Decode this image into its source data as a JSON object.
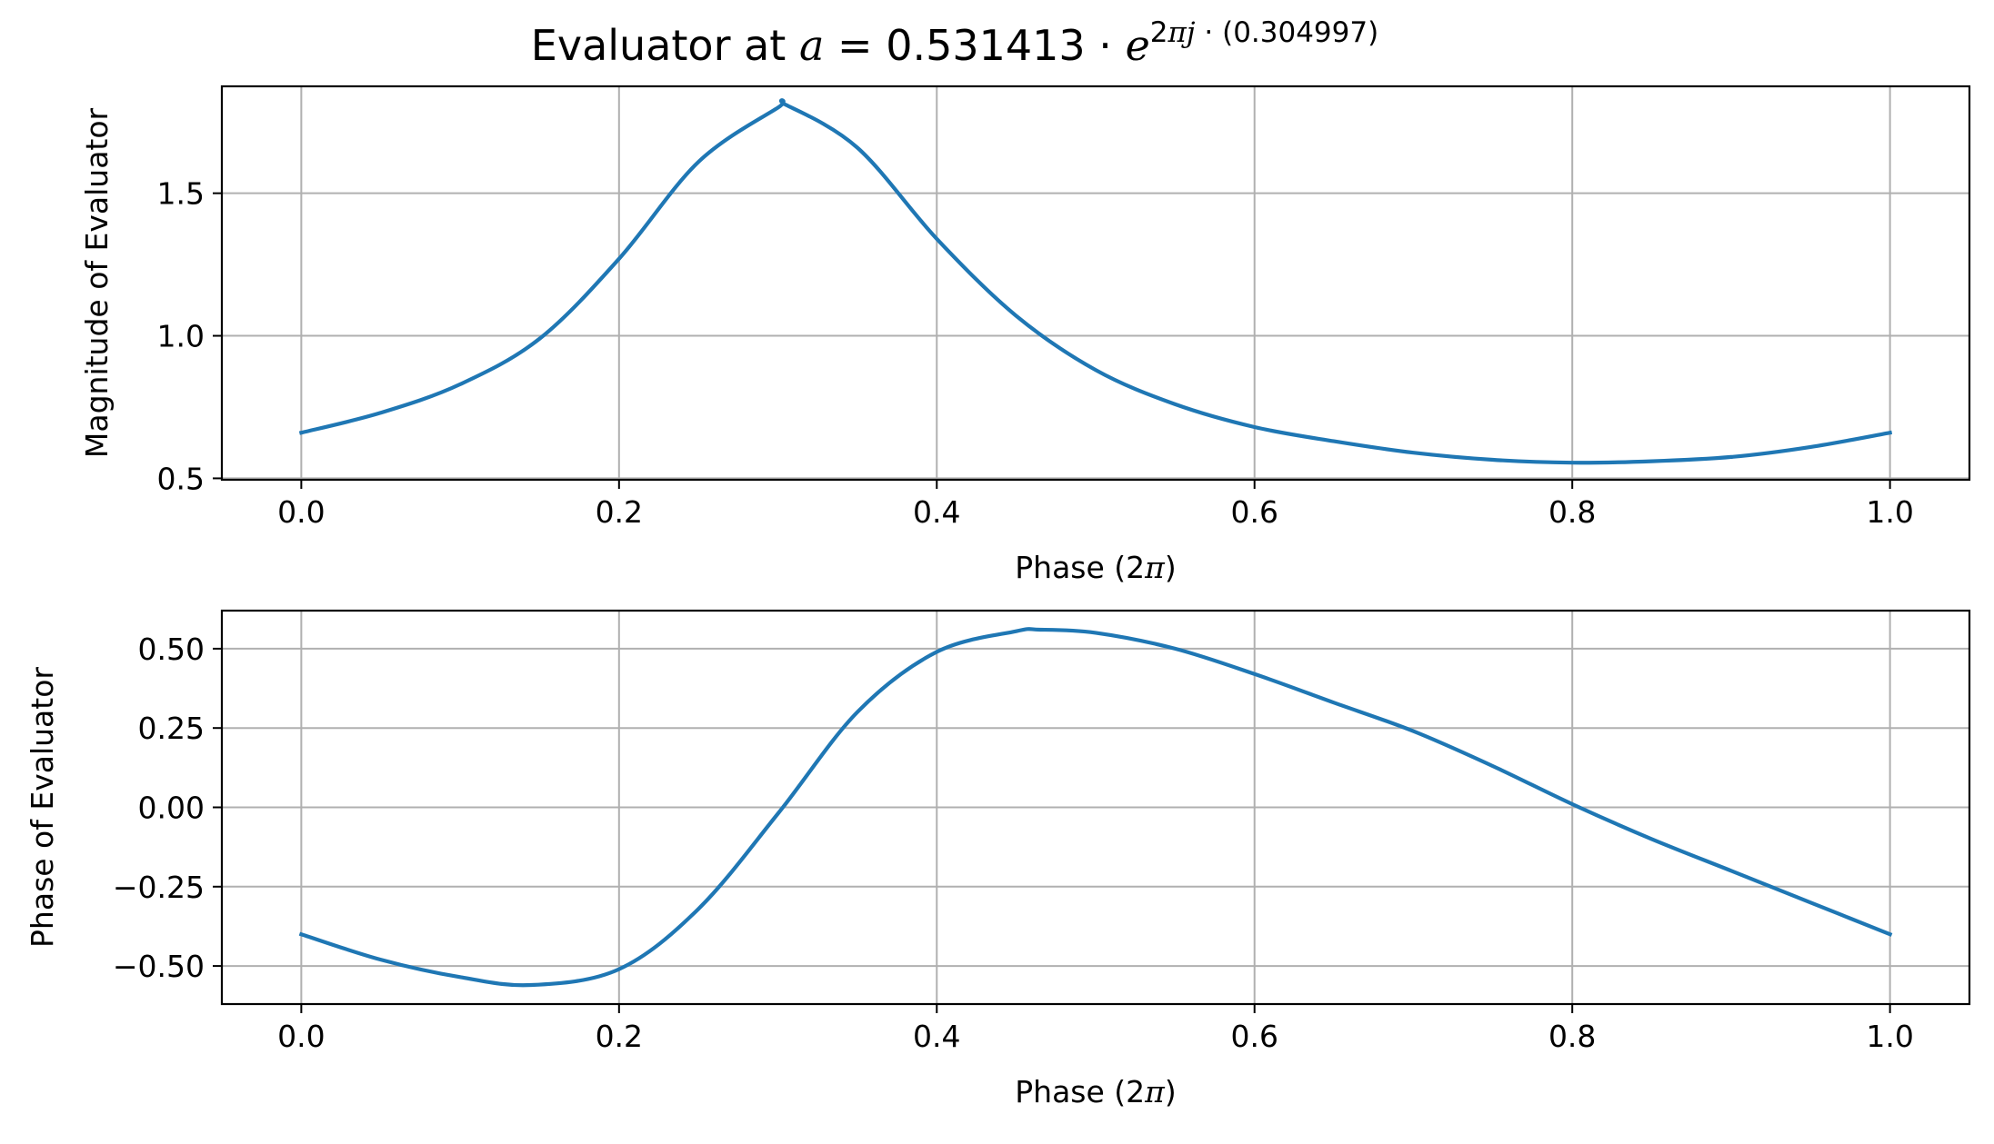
{
  "title": {
    "prefix": "Evaluator at ",
    "var": "a",
    "equals": " = 0.531413 · ",
    "base": "e",
    "exp_num": "2",
    "exp_pi": "π",
    "exp_j": "j",
    "exp_rest": " · (0.304997)"
  },
  "colors": {
    "line": "#1f77b4",
    "grid": "#b0b0b0",
    "axes": "#000000"
  },
  "chart_data": [
    {
      "type": "line",
      "xlabel_text": "Phase (2",
      "xlabel_pi": "π",
      "xlabel_close": ")",
      "ylabel": "Magnitude of Evaluator",
      "xlim": [
        -0.05,
        1.05
      ],
      "ylim": [
        0.495,
        1.875
      ],
      "xticks": [
        0.0,
        0.2,
        0.4,
        0.6,
        0.8,
        1.0
      ],
      "xtick_labels": [
        "0.0",
        "0.2",
        "0.4",
        "0.6",
        "0.8",
        "1.0"
      ],
      "yticks": [
        0.5,
        1.0,
        1.5
      ],
      "ytick_labels": [
        "0.5",
        "1.0",
        "1.5"
      ],
      "grid": true,
      "series": [
        {
          "x": [
            0.0,
            0.05,
            0.1,
            0.15,
            0.2,
            0.25,
            0.3,
            0.305,
            0.35,
            0.4,
            0.45,
            0.5,
            0.55,
            0.6,
            0.65,
            0.7,
            0.75,
            0.8,
            0.85,
            0.9,
            0.95,
            1.0
          ],
          "y": [
            0.66,
            0.73,
            0.83,
            0.99,
            1.27,
            1.61,
            1.8,
            1.81,
            1.66,
            1.34,
            1.07,
            0.88,
            0.76,
            0.68,
            0.63,
            0.59,
            0.565,
            0.555,
            0.56,
            0.575,
            0.61,
            0.66
          ]
        }
      ]
    },
    {
      "type": "line",
      "xlabel_text": "Phase (2",
      "xlabel_pi": "π",
      "xlabel_close": ")",
      "ylabel": "Phase of Evaluator",
      "xlim": [
        -0.05,
        1.05
      ],
      "ylim": [
        -0.62,
        0.62
      ],
      "xticks": [
        0.0,
        0.2,
        0.4,
        0.6,
        0.8,
        1.0
      ],
      "xtick_labels": [
        "0.0",
        "0.2",
        "0.4",
        "0.6",
        "0.8",
        "1.0"
      ],
      "yticks": [
        -0.5,
        -0.25,
        0.0,
        0.25,
        0.5
      ],
      "ytick_labels": [
        "−0.50",
        "−0.25",
        "0.00",
        "0.25",
        "0.50"
      ],
      "grid": true,
      "series": [
        {
          "x": [
            0.0,
            0.05,
            0.1,
            0.145,
            0.2,
            0.25,
            0.3,
            0.35,
            0.4,
            0.45,
            0.465,
            0.5,
            0.55,
            0.6,
            0.65,
            0.7,
            0.75,
            0.8,
            0.85,
            0.9,
            0.95,
            1.0
          ],
          "y": [
            -0.4,
            -0.48,
            -0.535,
            -0.56,
            -0.51,
            -0.32,
            -0.02,
            0.3,
            0.49,
            0.555,
            0.56,
            0.55,
            0.5,
            0.42,
            0.33,
            0.24,
            0.13,
            0.01,
            -0.1,
            -0.2,
            -0.3,
            -0.4
          ]
        }
      ]
    }
  ]
}
